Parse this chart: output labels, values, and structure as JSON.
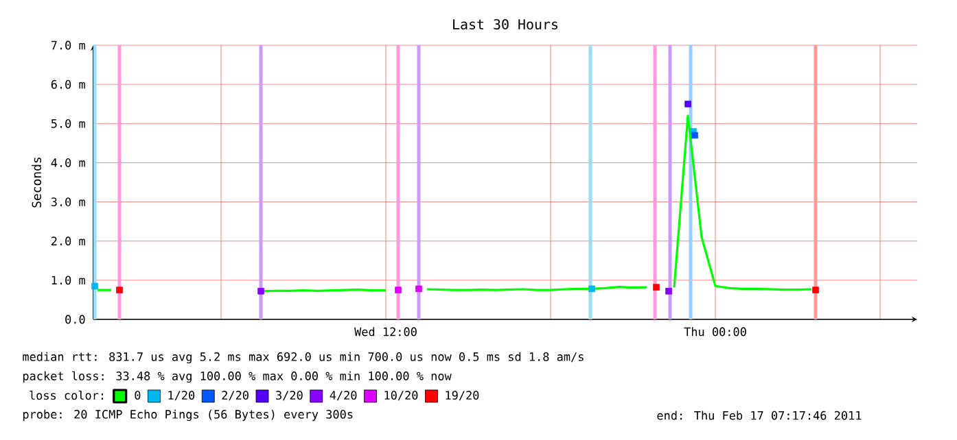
{
  "chart_data": {
    "type": "line",
    "title": "Last 30 Hours",
    "ylabel": "Seconds",
    "xlim": [
      "2011-02-16T01:21",
      "2011-02-17T07:21"
    ],
    "xticks": [
      {
        "value": "2011-02-16T06:00",
        "label": null
      },
      {
        "value": "2011-02-16T12:00",
        "label": "Wed 12:00"
      },
      {
        "value": "2011-02-16T18:00",
        "label": null
      },
      {
        "value": "2011-02-17T00:00",
        "label": "Thu 00:00"
      },
      {
        "value": "2011-02-17T06:00",
        "label": null
      }
    ],
    "ylim": [
      0,
      7
    ],
    "yticks": [
      {
        "value": 0,
        "label": "0.0"
      },
      {
        "value": 1,
        "label": "1.0 m"
      },
      {
        "value": 2,
        "label": "2.0 m"
      },
      {
        "value": 3,
        "label": "3.0 m"
      },
      {
        "value": 4,
        "label": "4.0 m"
      },
      {
        "value": 5,
        "label": "5.0 m"
      },
      {
        "value": 6,
        "label": "6.0 m"
      },
      {
        "value": 7,
        "label": "7.0 m"
      }
    ],
    "grid": true,
    "legend": "bottom",
    "legend_title": "loss color:",
    "series": [
      {
        "name": "0",
        "color": "#00ff00",
        "x": [
          "2011-02-16T01:30",
          "2011-02-16T02:00",
          "2011-02-16T02:30",
          "2011-02-16T03:00",
          "2011-02-16T03:30",
          "2011-02-16T04:00",
          "2011-02-16T04:30",
          "2011-02-16T05:00",
          "2011-02-16T05:30",
          "2011-02-16T06:00",
          "2011-02-16T06:30",
          "2011-02-16T07:00",
          "2011-02-16T07:30",
          "2011-02-16T08:00",
          "2011-02-16T08:30",
          "2011-02-16T09:00",
          "2011-02-16T09:30",
          "2011-02-16T10:00",
          "2011-02-16T10:30",
          "2011-02-16T11:00",
          "2011-02-16T11:30",
          "2011-02-16T12:00",
          "2011-02-16T12:30",
          "2011-02-16T13:00",
          "2011-02-16T13:30",
          "2011-02-16T14:00",
          "2011-02-16T14:30",
          "2011-02-16T15:00",
          "2011-02-16T15:30",
          "2011-02-16T16:00",
          "2011-02-16T16:30",
          "2011-02-16T17:00",
          "2011-02-16T17:30",
          "2011-02-16T18:00",
          "2011-02-16T18:30",
          "2011-02-16T19:00",
          "2011-02-16T19:30",
          "2011-02-16T20:00",
          "2011-02-16T20:30",
          "2011-02-16T21:00",
          "2011-02-16T21:30",
          "2011-02-16T22:00",
          "2011-02-16T22:30",
          "2011-02-16T23:00",
          "2011-02-16T23:30",
          "2011-02-17T00:00",
          "2011-02-17T00:30",
          "2011-02-17T01:00",
          "2011-02-17T01:30",
          "2011-02-17T02:00",
          "2011-02-17T02:30",
          "2011-02-17T03:00",
          "2011-02-17T03:30"
        ],
        "values": [
          0.75,
          0.75,
          null,
          null,
          null,
          null,
          null,
          null,
          null,
          null,
          null,
          null,
          0.72,
          0.73,
          0.73,
          0.74,
          0.73,
          0.74,
          0.75,
          0.76,
          0.74,
          0.74,
          null,
          null,
          0.77,
          0.76,
          0.75,
          0.75,
          0.76,
          0.75,
          0.76,
          0.77,
          0.75,
          0.75,
          0.77,
          0.78,
          0.78,
          0.8,
          0.83,
          0.81,
          0.82,
          null,
          0.82,
          5.2,
          2.1,
          0.85,
          0.8,
          0.78,
          0.78,
          0.77,
          0.76,
          0.76,
          0.77
        ]
      },
      {
        "name": "1/20",
        "type": "scatter",
        "marker": "square",
        "color": "#00b8f0",
        "x": [
          "2011-02-16T01:24",
          "2011-02-16T19:30",
          "2011-02-16T23:12"
        ],
        "values": [
          0.85,
          0.78,
          4.8
        ]
      },
      {
        "name": "2/20",
        "type": "scatter",
        "marker": "square",
        "color": "#0059ff",
        "x": [
          "2011-02-16T23:15"
        ],
        "values": [
          4.7
        ]
      },
      {
        "name": "3/20",
        "type": "scatter",
        "marker": "square",
        "color": "#5500ff",
        "x": [
          "2011-02-16T23:00"
        ],
        "values": [
          5.5
        ]
      },
      {
        "name": "4/20",
        "type": "scatter",
        "marker": "square",
        "color": "#8800ff",
        "x": [
          "2011-02-16T07:27",
          "2011-02-16T22:18"
        ],
        "values": [
          0.72,
          0.72
        ]
      },
      {
        "name": "10/20",
        "type": "scatter",
        "marker": "square",
        "color": "#dd00ff",
        "x": [
          "2011-02-16T12:27",
          "2011-02-16T13:12"
        ],
        "values": [
          0.75,
          0.78
        ]
      },
      {
        "name": "19/20",
        "type": "scatter",
        "marker": "square",
        "color": "#ff0000",
        "x": [
          "2011-02-16T02:18",
          "2011-02-16T21:51",
          "2011-02-17T03:39"
        ],
        "values": [
          0.75,
          0.82,
          0.75
        ]
      }
    ],
    "ref_lines": [
      {
        "axis": "x",
        "value": "2011-02-16T01:24",
        "color": "#99ddf5"
      },
      {
        "axis": "x",
        "value": "2011-02-16T02:18",
        "color": "#ff99dd"
      },
      {
        "axis": "x",
        "value": "2011-02-16T07:27",
        "color": "#cc99ff"
      },
      {
        "axis": "x",
        "value": "2011-02-16T12:27",
        "color": "#ff99dd"
      },
      {
        "axis": "x",
        "value": "2011-02-16T13:12",
        "color": "#cc99ff"
      },
      {
        "axis": "x",
        "value": "2011-02-16T19:27",
        "color": "#99ddf5"
      },
      {
        "axis": "x",
        "value": "2011-02-16T21:48",
        "color": "#ff99dd"
      },
      {
        "axis": "x",
        "value": "2011-02-16T22:21",
        "color": "#cc99ff"
      },
      {
        "axis": "x",
        "value": "2011-02-16T23:06",
        "color": "#99ccff"
      },
      {
        "axis": "x",
        "value": "2011-02-17T03:39",
        "color": "#ff9999"
      }
    ],
    "annotations": [
      "median rtt:  831.7 us avg  5.2 ms max  692.0 us min  700.0 us now  0.5 ms sd  1.8  am/s",
      "packet loss: 33.48 % avg  100.00 % max  0.00 % min  100.00 % now",
      "probe:  20 ICMP Echo Pings (56 Bytes) every 300s",
      "end: Thu Feb 17 07:17:46 2011"
    ]
  }
}
